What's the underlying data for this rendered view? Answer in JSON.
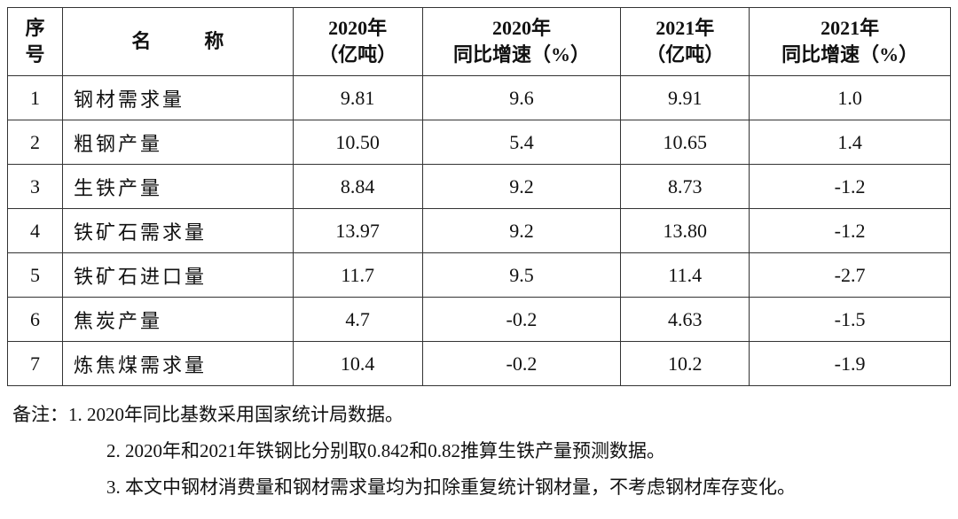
{
  "table": {
    "headers": [
      [
        "序",
        "号"
      ],
      [
        "名称"
      ],
      [
        "2020年",
        "（亿吨）"
      ],
      [
        "2020年",
        "同比增速（%）"
      ],
      [
        "2021年",
        "（亿吨）"
      ],
      [
        "2021年",
        "同比增速（%）"
      ]
    ],
    "rows": [
      [
        "1",
        "钢材需求量",
        "9.81",
        "9.6",
        "9.91",
        "1.0"
      ],
      [
        "2",
        "粗钢产量",
        "10.50",
        "5.4",
        "10.65",
        "1.4"
      ],
      [
        "3",
        "生铁产量",
        "8.84",
        "9.2",
        "8.73",
        "-1.2"
      ],
      [
        "4",
        "铁矿石需求量",
        "13.97",
        "9.2",
        "13.80",
        "-1.2"
      ],
      [
        "5",
        "铁矿石进口量",
        "11.7",
        "9.5",
        "11.4",
        "-2.7"
      ],
      [
        "6",
        "焦炭产量",
        "4.7",
        "-0.2",
        "4.63",
        "-1.5"
      ],
      [
        "7",
        "炼焦煤需求量",
        "10.4",
        "-0.2",
        "10.2",
        "-1.9"
      ]
    ]
  },
  "notes": [
    "备注：1. 2020年同比基数采用国家统计局数据。",
    "2. 2020年和2021年铁钢比分别取0.842和0.82推算生铁产量预测数据。",
    "3. 本文中钢材消费量和钢材需求量均为扣除重复统计钢材量，不考虑钢材库存变化。"
  ]
}
